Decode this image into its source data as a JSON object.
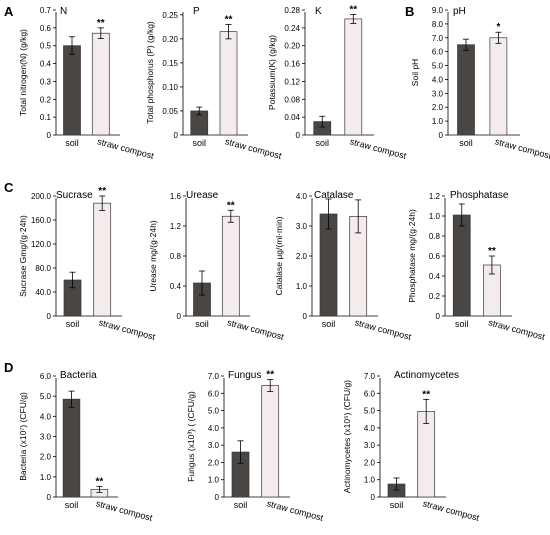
{
  "panels": [
    "A",
    "B",
    "C",
    "D"
  ],
  "colors": {
    "soil": "#4a4644",
    "straw": "#f4ecec"
  },
  "chart_data": [
    {
      "type": "bar",
      "panel": "A",
      "title": "N",
      "ylabel": "Total nitrogen(N) (g/kg)",
      "categories": [
        "soil",
        "straw compost"
      ],
      "values": [
        0.5,
        0.57
      ],
      "errors": [
        0.05,
        0.03
      ],
      "significance": [
        "",
        "**"
      ],
      "ylim": [
        0,
        0.7
      ],
      "yticks": [
        "0",
        "0.1",
        "0.2",
        "0.3",
        "0.4",
        "0.5",
        "0.6",
        "0.7"
      ],
      "ytickvals": [
        0,
        0.1,
        0.2,
        0.3,
        0.4,
        0.5,
        0.6,
        0.7
      ]
    },
    {
      "type": "bar",
      "panel": "",
      "title": "P",
      "ylabel": "Total phosphorus (P) (g/kg)",
      "categories": [
        "soil",
        "straw compost"
      ],
      "values": [
        0.05,
        0.215
      ],
      "errors": [
        0.008,
        0.015
      ],
      "significance": [
        "",
        "**"
      ],
      "ylim": [
        0,
        0.26
      ],
      "yticks": [
        "0",
        "0.05",
        "0.10",
        "0.15",
        "0.20",
        "0.25"
      ],
      "ytickvals": [
        0,
        0.05,
        0.1,
        0.15,
        0.2,
        0.25
      ]
    },
    {
      "type": "bar",
      "panel": "",
      "title": "K",
      "ylabel": "Potassium(K) (g/kg)",
      "categories": [
        "soil",
        "straw compost"
      ],
      "values": [
        0.03,
        0.26
      ],
      "errors": [
        0.012,
        0.01
      ],
      "significance": [
        "",
        "**"
      ],
      "ylim": [
        0,
        0.28
      ],
      "yticks": [
        "0",
        "0.04",
        "0.08",
        "0.12",
        "0.16",
        "0.20",
        "0.24",
        "0.28"
      ],
      "ytickvals": [
        0,
        0.04,
        0.08,
        0.12,
        0.16,
        0.2,
        0.24,
        0.28
      ]
    },
    {
      "type": "bar",
      "panel": "B",
      "title": "pH",
      "ylabel": "Soil pH",
      "categories": [
        "soil",
        "straw compost"
      ],
      "values": [
        6.5,
        7.0
      ],
      "errors": [
        0.4,
        0.4
      ],
      "significance": [
        "",
        "*"
      ],
      "ylim": [
        0,
        9.0
      ],
      "yticks": [
        "0",
        "1.0",
        "2.0",
        "3.0",
        "4.0",
        "5.0",
        "6.0",
        "7.0",
        "8.0",
        "9.0"
      ],
      "ytickvals": [
        0,
        1,
        2,
        3,
        4,
        5,
        6,
        7,
        8,
        9
      ]
    },
    {
      "type": "bar",
      "panel": "C",
      "title": "Sucrase",
      "ylabel": "Sucrase Gmg/(g·24h)",
      "categories": [
        "soil",
        "straw compost"
      ],
      "values": [
        60,
        188
      ],
      "errors": [
        13,
        12
      ],
      "significance": [
        "",
        "**"
      ],
      "ylim": [
        0,
        200
      ],
      "yticks": [
        "0",
        "40.0",
        "80.0",
        "120.0",
        "160.0",
        "200.0"
      ],
      "ytickvals": [
        0,
        40,
        80,
        120,
        160,
        200
      ]
    },
    {
      "type": "bar",
      "panel": "",
      "title": "Urease",
      "ylabel": "Urease mg/(g·24h)",
      "categories": [
        "soil",
        "straw compost"
      ],
      "values": [
        0.44,
        1.33
      ],
      "errors": [
        0.16,
        0.08
      ],
      "significance": [
        "",
        "**"
      ],
      "ylim": [
        0,
        1.6
      ],
      "yticks": [
        "0",
        "0.4",
        "0.8",
        "1.2",
        "1.6"
      ],
      "ytickvals": [
        0,
        0.4,
        0.8,
        1.2,
        1.6
      ]
    },
    {
      "type": "bar",
      "panel": "",
      "title": "Catalase",
      "ylabel": "Catalase μg/(ml·min)",
      "categories": [
        "soil",
        "straw compost"
      ],
      "values": [
        3.4,
        3.32
      ],
      "errors": [
        0.5,
        0.55
      ],
      "significance": [
        "",
        ""
      ],
      "ylim": [
        0,
        4.0
      ],
      "yticks": [
        "0",
        "1.0",
        "2.0",
        "3.0",
        "4.0"
      ],
      "ytickvals": [
        0,
        1,
        2,
        3,
        4
      ]
    },
    {
      "type": "bar",
      "panel": "",
      "title": "Phosphatase",
      "ylabel": "Phosphatase mg/(g·24h)",
      "categories": [
        "soil",
        "straw compost"
      ],
      "values": [
        1.01,
        0.51
      ],
      "errors": [
        0.11,
        0.09
      ],
      "significance": [
        "",
        "**"
      ],
      "ylim": [
        0,
        1.2
      ],
      "yticks": [
        "0",
        "0.2",
        "0.4",
        "0.6",
        "0.8",
        "1.0",
        "1.2"
      ],
      "ytickvals": [
        0,
        0.2,
        0.4,
        0.6,
        0.8,
        1.0,
        1.2
      ]
    },
    {
      "type": "bar",
      "panel": "D",
      "title": "Bacteria",
      "ylabel": "Bacteria (x10⁷) (CFU/g)",
      "categories": [
        "soil",
        "straw compost"
      ],
      "values": [
        4.85,
        0.38
      ],
      "errors": [
        0.4,
        0.15
      ],
      "significance": [
        "",
        "**"
      ],
      "ylim": [
        0,
        6.0
      ],
      "yticks": [
        "0",
        "1.0",
        "2.0",
        "3.0",
        "4.0",
        "5.0",
        "6.0"
      ],
      "ytickvals": [
        0,
        1,
        2,
        3,
        4,
        5,
        6
      ]
    },
    {
      "type": "bar",
      "panel": "",
      "title": "Fungus",
      "ylabel": "Fungus (x10³) ( (CFU/g)",
      "categories": [
        "soil",
        "straw compost"
      ],
      "values": [
        2.6,
        6.45
      ],
      "errors": [
        0.65,
        0.35
      ],
      "significance": [
        "",
        "**"
      ],
      "ylim": [
        0,
        7.0
      ],
      "yticks": [
        "0",
        "1.0",
        "2.0",
        "3.0",
        "4.0",
        "5.0",
        "6.0",
        "7.0"
      ],
      "ytickvals": [
        0,
        1,
        2,
        3,
        4,
        5,
        6,
        7
      ]
    },
    {
      "type": "bar",
      "panel": "",
      "title": "Actinomycetes",
      "ylabel": "Actinomycetes (x10⁵) (CFU/g)",
      "categories": [
        "soil",
        "straw compost"
      ],
      "values": [
        0.75,
        4.95
      ],
      "errors": [
        0.35,
        0.7
      ],
      "significance": [
        "",
        "**"
      ],
      "ylim": [
        0,
        7.0
      ],
      "yticks": [
        "0",
        "1.0",
        "2.0",
        "3.0",
        "4.0",
        "5.0",
        "6.0",
        "7.0"
      ],
      "ytickvals": [
        0,
        1,
        2,
        3,
        4,
        5,
        6,
        7
      ]
    }
  ]
}
